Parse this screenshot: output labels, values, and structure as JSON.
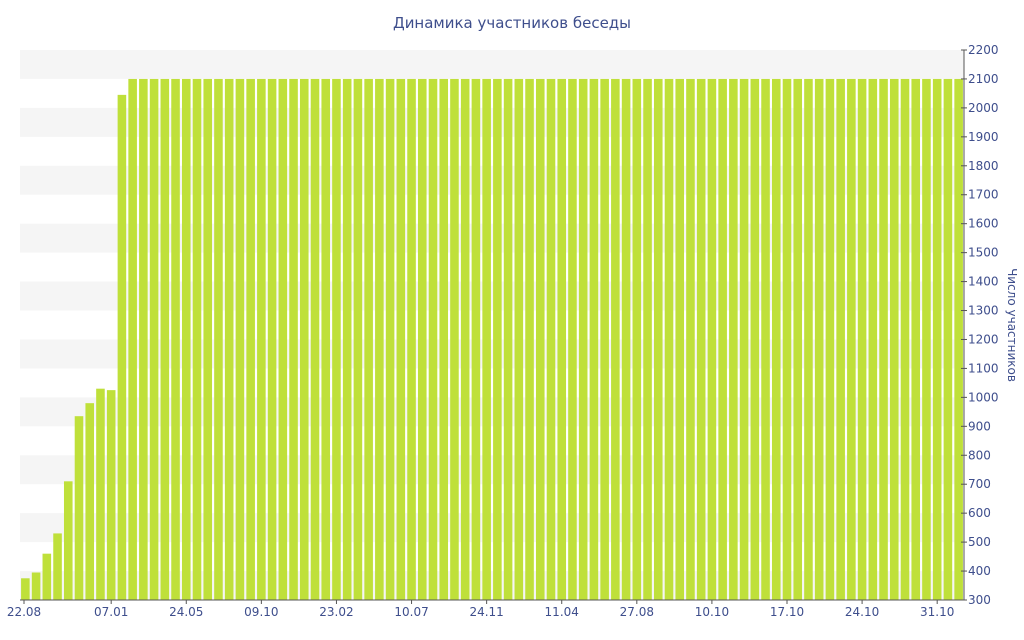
{
  "colors": {
    "bar": "#bfe03a",
    "band": "#f5f5f5",
    "text": "#3e4e8c",
    "axis": "#555555"
  },
  "chart_data": {
    "type": "bar",
    "title": "Динамика участников беседы",
    "xlabel": "",
    "ylabel": "Число участников",
    "ylim": [
      300,
      2200
    ],
    "y_axis_side": "right",
    "y_ticks": [
      300,
      400,
      500,
      600,
      700,
      800,
      900,
      1000,
      1100,
      1200,
      1300,
      1400,
      1500,
      1600,
      1700,
      1800,
      1900,
      2000,
      2100,
      2200
    ],
    "x_tick_labels": [
      {
        "index": 0,
        "label": "22.08"
      },
      {
        "index": 8,
        "label": "07.01"
      },
      {
        "index": 15,
        "label": "24.05"
      },
      {
        "index": 22,
        "label": "09.10"
      },
      {
        "index": 29,
        "label": "23.02"
      },
      {
        "index": 36,
        "label": "10.07"
      },
      {
        "index": 43,
        "label": "24.11"
      },
      {
        "index": 50,
        "label": "11.04"
      },
      {
        "index": 57,
        "label": "27.08"
      },
      {
        "index": 64,
        "label": "10.10"
      },
      {
        "index": 71,
        "label": "17.10"
      },
      {
        "index": 78,
        "label": "24.10"
      },
      {
        "index": 85,
        "label": "31.10"
      }
    ],
    "values": [
      375,
      395,
      460,
      530,
      710,
      935,
      980,
      1030,
      1025,
      2045,
      2100,
      2100,
      2100,
      2100,
      2100,
      2100,
      2100,
      2100,
      2100,
      2100,
      2100,
      2100,
      2100,
      2100,
      2100,
      2100,
      2100,
      2100,
      2100,
      2100,
      2100,
      2100,
      2100,
      2100,
      2100,
      2100,
      2100,
      2100,
      2100,
      2100,
      2100,
      2100,
      2100,
      2100,
      2100,
      2100,
      2100,
      2100,
      2100,
      2100,
      2100,
      2100,
      2100,
      2100,
      2100,
      2100,
      2100,
      2100,
      2100,
      2100,
      2100,
      2100,
      2100,
      2100,
      2100,
      2100,
      2100,
      2100,
      2100,
      2100,
      2100,
      2100,
      2100,
      2100,
      2100,
      2100,
      2100,
      2100,
      2100,
      2100,
      2100,
      2100,
      2100,
      2100,
      2100,
      2100,
      2100,
      2100
    ]
  }
}
